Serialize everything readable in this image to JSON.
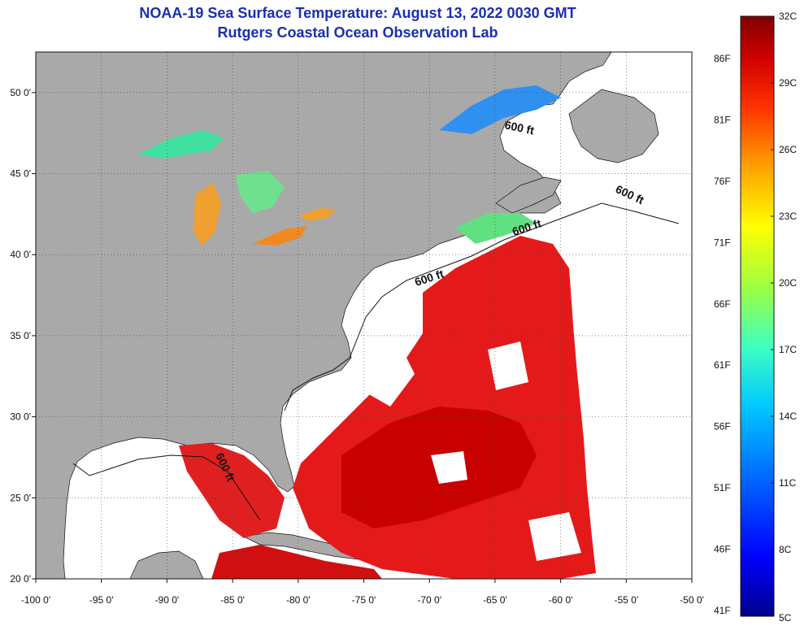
{
  "title": {
    "line1": "NOAA-19 Sea Surface Temperature:  August 13, 2022 0030 GMT",
    "line2": "Rutgers Coastal Ocean Observation Lab"
  },
  "map": {
    "lon_range": [
      -100,
      -50
    ],
    "lat_range": [
      20,
      52.5
    ],
    "x_ticks": [
      {
        "lon": -100,
        "label": "-100 0'"
      },
      {
        "lon": -95,
        "label": "-95 0'"
      },
      {
        "lon": -90,
        "label": "-90 0'"
      },
      {
        "lon": -85,
        "label": "-85 0'"
      },
      {
        "lon": -80,
        "label": "-80 0'"
      },
      {
        "lon": -75,
        "label": "-75 0'"
      },
      {
        "lon": -70,
        "label": "-70 0'"
      },
      {
        "lon": -65,
        "label": "-65 0'"
      },
      {
        "lon": -60,
        "label": "-60 0'"
      },
      {
        "lon": -55,
        "label": "-55 0'"
      },
      {
        "lon": -50,
        "label": "-50 0'"
      }
    ],
    "y_ticks": [
      {
        "lat": 20,
        "label": "20 0'"
      },
      {
        "lat": 25,
        "label": "25 0'"
      },
      {
        "lat": 30,
        "label": "30 0'"
      },
      {
        "lat": 35,
        "label": "35 0'"
      },
      {
        "lat": 40,
        "label": "40 0'"
      },
      {
        "lat": 45,
        "label": "45 0'"
      },
      {
        "lat": 50,
        "label": "50 0'"
      }
    ],
    "grid": "dotted",
    "contour_labels": [
      "600 ft",
      "600 ft",
      "600 ft",
      "600 ft",
      "600 ft"
    ],
    "colors": {
      "land": "#a9a9a9",
      "ocean_no_data": "#ffffff",
      "warm_sst": "#e41a1a",
      "hot_sst": "#c00000",
      "mild_sst": "#ff8a1a"
    }
  },
  "colorbar": {
    "celsius": [
      "32C",
      "29C",
      "26C",
      "23C",
      "20C",
      "17C",
      "14C",
      "11C",
      "8C",
      "5C"
    ],
    "fahrenheit": [
      "86F",
      "81F",
      "76F",
      "71F",
      "66F",
      "61F",
      "56F",
      "51F",
      "46F",
      "41F"
    ],
    "stops": [
      "#00008b",
      "#0000ff",
      "#0060ff",
      "#00c8ff",
      "#40ffc0",
      "#a0ff40",
      "#ffff00",
      "#ffa000",
      "#ff3000",
      "#d00000",
      "#800000"
    ]
  }
}
